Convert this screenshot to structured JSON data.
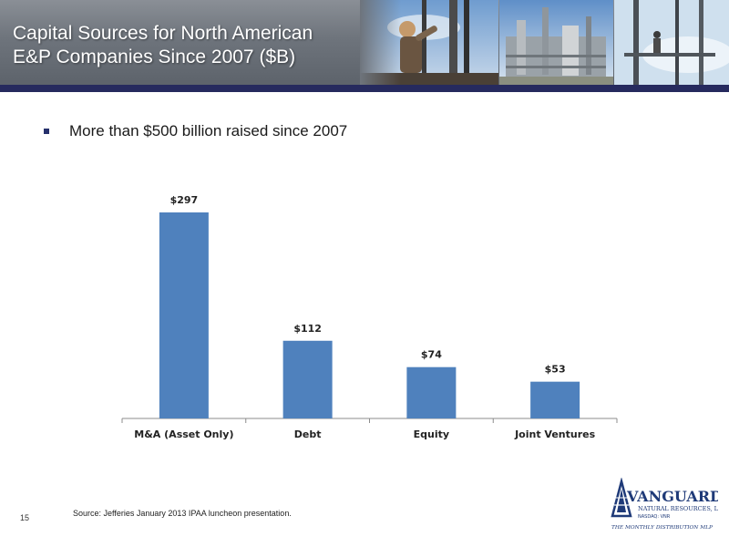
{
  "slide": {
    "title_line1": "Capital Sources for North American",
    "title_line2": "E&P Companies Since 2007 ($B)",
    "bullet": "More than $500 billion raised since 2007",
    "page_number": "15",
    "source": "Source:  Jefferies January 2013 IPAA luncheon presentation."
  },
  "logo": {
    "name": "VANGUARD",
    "sub": "NATURAL RESOURCES, LLC",
    "ticker": "NASDAQ: VNR",
    "tagline": "THE MONTHLY DISTRIBUTION MLP"
  },
  "colors": {
    "bar": "#4f81bd",
    "header_bar": "#262a5e",
    "bullet": "#26306c"
  },
  "chart_data": {
    "type": "bar",
    "categories": [
      "M&A (Asset Only)",
      "Debt",
      "Equity",
      "Joint Ventures"
    ],
    "values": [
      297,
      112,
      74,
      53
    ],
    "data_labels": [
      "$297",
      "$112",
      "$74",
      "$53"
    ],
    "ylim": [
      0,
      330
    ],
    "grid": false,
    "legend": "none"
  }
}
